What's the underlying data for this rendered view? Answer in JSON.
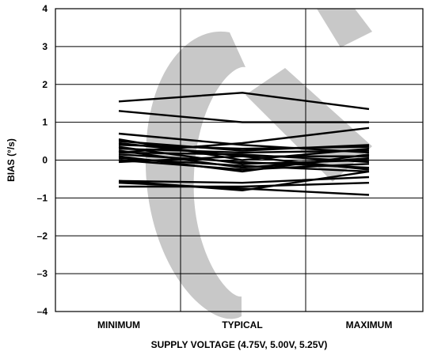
{
  "chart_data": {
    "type": "line",
    "title": "",
    "xlabel": "SUPPLY VOLTAGE (4.75V, 5.00V, 5.25V)",
    "ylabel": "BIAS (°/s)",
    "categories": [
      "MINIMUM",
      "TYPICAL",
      "MAXIMUM"
    ],
    "ylim": [
      -4,
      4
    ],
    "yticks": [
      "4",
      "3",
      "2",
      "1",
      "0",
      "–1",
      "–2",
      "–3",
      "–4"
    ],
    "ytick_values": [
      4,
      3,
      2,
      1,
      0,
      -1,
      -2,
      -3,
      -4
    ],
    "grid": true,
    "legend": "none",
    "line_color": "#000000",
    "watermark_text": "OBSOLETE",
    "watermark_color": "#c8c8c8",
    "series": [
      {
        "values": [
          1.55,
          1.78,
          1.35
        ]
      },
      {
        "values": [
          1.3,
          1.0,
          1.0
        ]
      },
      {
        "values": [
          0.7,
          0.4,
          0.2
        ]
      },
      {
        "values": [
          0.55,
          0.0,
          0.3
        ]
      },
      {
        "values": [
          0.5,
          0.25,
          0.4
        ]
      },
      {
        "values": [
          0.45,
          0.1,
          0.1
        ]
      },
      {
        "values": [
          0.4,
          0.3,
          0.35
        ]
      },
      {
        "values": [
          0.35,
          -0.1,
          0.0
        ]
      },
      {
        "values": [
          0.3,
          0.2,
          0.25
        ]
      },
      {
        "values": [
          0.25,
          -0.2,
          0.05
        ]
      },
      {
        "values": [
          0.2,
          0.15,
          -0.05
        ]
      },
      {
        "values": [
          0.15,
          -0.05,
          -0.2
        ]
      },
      {
        "values": [
          0.1,
          -0.3,
          0.15
        ]
      },
      {
        "values": [
          0.05,
          -0.15,
          -0.3
        ]
      },
      {
        "values": [
          0.0,
          -0.25,
          -0.1
        ]
      },
      {
        "values": [
          -0.05,
          0.1,
          -0.25
        ]
      },
      {
        "values": [
          0.2,
          0.45,
          0.85
        ]
      },
      {
        "values": [
          -0.55,
          -0.6,
          -0.45
        ]
      },
      {
        "values": [
          -0.55,
          -0.8,
          -0.3
        ]
      },
      {
        "values": [
          -0.7,
          -0.7,
          -0.6
        ]
      },
      {
        "values": [
          -0.6,
          -0.75,
          -0.92
        ]
      }
    ]
  }
}
